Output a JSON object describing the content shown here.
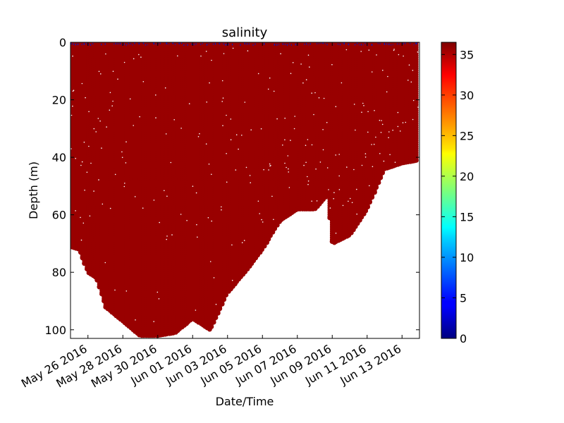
{
  "chart_data": {
    "type": "scatter",
    "title": "salinity",
    "xlabel": "Date/Time",
    "ylabel": "Depth (m)",
    "x_axis": {
      "kind": "date",
      "range": [
        "2016-05-25",
        "2016-06-14"
      ],
      "ticks": [
        "May 26 2016",
        "May 28 2016",
        "May 30 2016",
        "Jun 01 2016",
        "Jun 03 2016",
        "Jun 05 2016",
        "Jun 07 2016",
        "Jun 09 2016",
        "Jun 11 2016",
        "Jun 13 2016"
      ]
    },
    "y_axis": {
      "inverted": true,
      "range": [
        0,
        103
      ],
      "ticks": [
        "0",
        "20",
        "40",
        "60",
        "80",
        "100"
      ]
    },
    "colorbar": {
      "colormap": "jet",
      "range": [
        0,
        36.5
      ],
      "ticks": [
        "0",
        "5",
        "10",
        "15",
        "20",
        "25",
        "30",
        "35"
      ]
    },
    "grid": false,
    "colors": {
      "main_points": "#990000",
      "surface_points": "#1a1aa8"
    },
    "series": [
      {
        "salinity_value": 36,
        "max_depth_profile": {
          "x": [
            "2016-05-25",
            "2016-05-25 12:00",
            "2016-05-26",
            "2016-05-26 12:00",
            "2016-05-27",
            "2016-05-28",
            "2016-05-29",
            "2016-05-30",
            "2016-05-31",
            "2016-06-01",
            "2016-06-02",
            "2016-06-03",
            "2016-06-04",
            "2016-06-05",
            "2016-06-06",
            "2016-06-07",
            "2016-06-08",
            "2016-06-08 18:00",
            "2016-06-09",
            "2016-06-10",
            "2016-06-11",
            "2016-06-12",
            "2016-06-13",
            "2016-06-13 22:00"
          ],
          "y": [
            71,
            72,
            80,
            82,
            92,
            97,
            102,
            102,
            101,
            96,
            100,
            87,
            80,
            72,
            62,
            58,
            58,
            53,
            70,
            67,
            58,
            44,
            42,
            41
          ]
        }
      }
    ]
  }
}
